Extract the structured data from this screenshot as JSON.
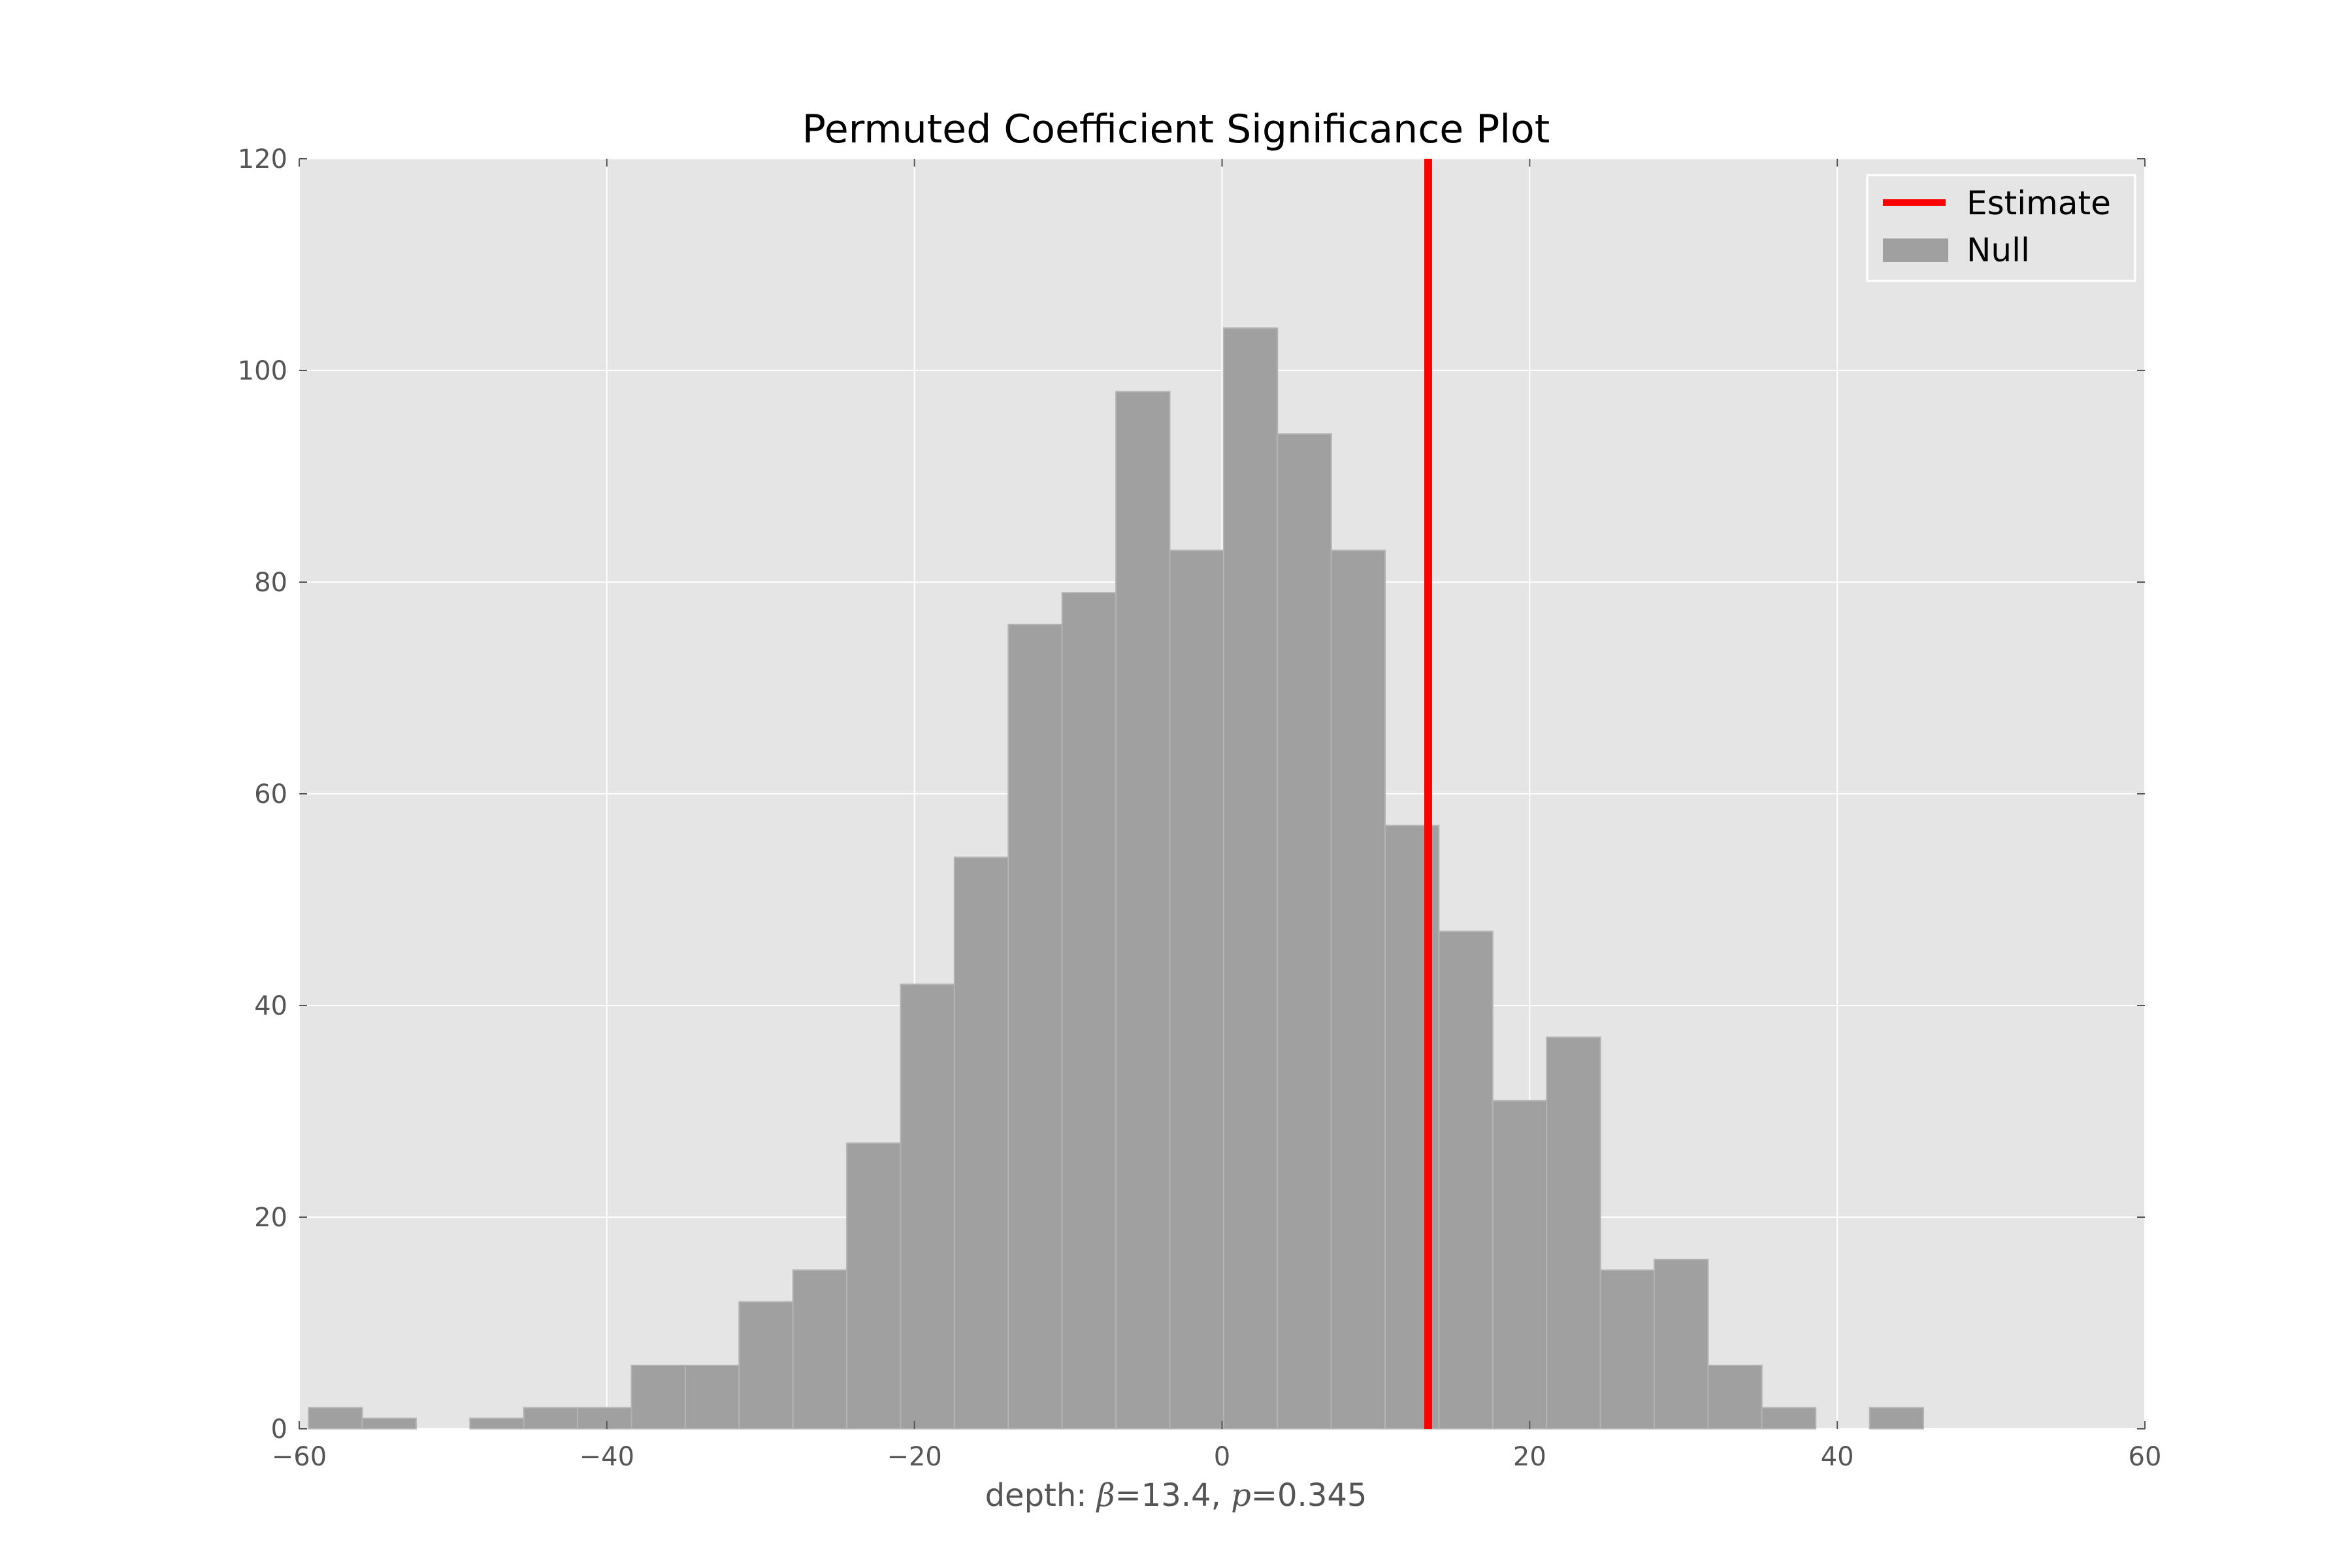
{
  "chart_data": {
    "type": "bar",
    "title": "Permuted Coefficient Significance Plot",
    "xlabel": {
      "prefix": "depth: ",
      "beta_symbol": "β",
      "beta_value": "=13.4, ",
      "p_symbol": "p",
      "p_value": "=0.345"
    },
    "ylabel": "",
    "xlim": [
      -60,
      60
    ],
    "ylim": [
      0,
      120
    ],
    "xticks": [
      -60,
      -40,
      -20,
      0,
      20,
      40,
      60
    ],
    "xtick_labels": [
      "−60",
      "−40",
      "−20",
      "0",
      "20",
      "40",
      "60"
    ],
    "yticks": [
      0,
      20,
      40,
      60,
      80,
      100,
      120
    ],
    "ytick_labels": [
      "0",
      "20",
      "40",
      "60",
      "80",
      "100",
      "120"
    ],
    "grid": true,
    "legend_position": "top-right",
    "estimate": {
      "name": "Estimate",
      "value": 13.4,
      "color": "#ff0000"
    },
    "null_series": {
      "name": "Null",
      "color": "#a0a0a0",
      "bin_edges": [
        -59.4,
        -55.9,
        -52.4,
        -48.9,
        -45.4,
        -41.9,
        -38.4,
        -34.9,
        -31.4,
        -27.9,
        -24.4,
        -20.9,
        -17.4,
        -13.9,
        -10.4,
        -6.9,
        -3.4,
        0.1,
        3.6,
        7.1,
        10.6,
        14.1,
        17.6,
        21.1,
        24.6,
        28.1,
        31.6,
        35.1,
        38.6,
        42.1,
        45.6
      ],
      "counts": [
        2,
        1,
        0,
        1,
        2,
        2,
        6,
        6,
        12,
        15,
        27,
        42,
        54,
        76,
        79,
        98,
        83,
        104,
        94,
        83,
        57,
        47,
        31,
        37,
        15,
        16,
        6,
        2,
        0,
        2
      ]
    },
    "colors": {
      "axes_background": "#e5e5e5",
      "grid": "#ffffff"
    }
  }
}
